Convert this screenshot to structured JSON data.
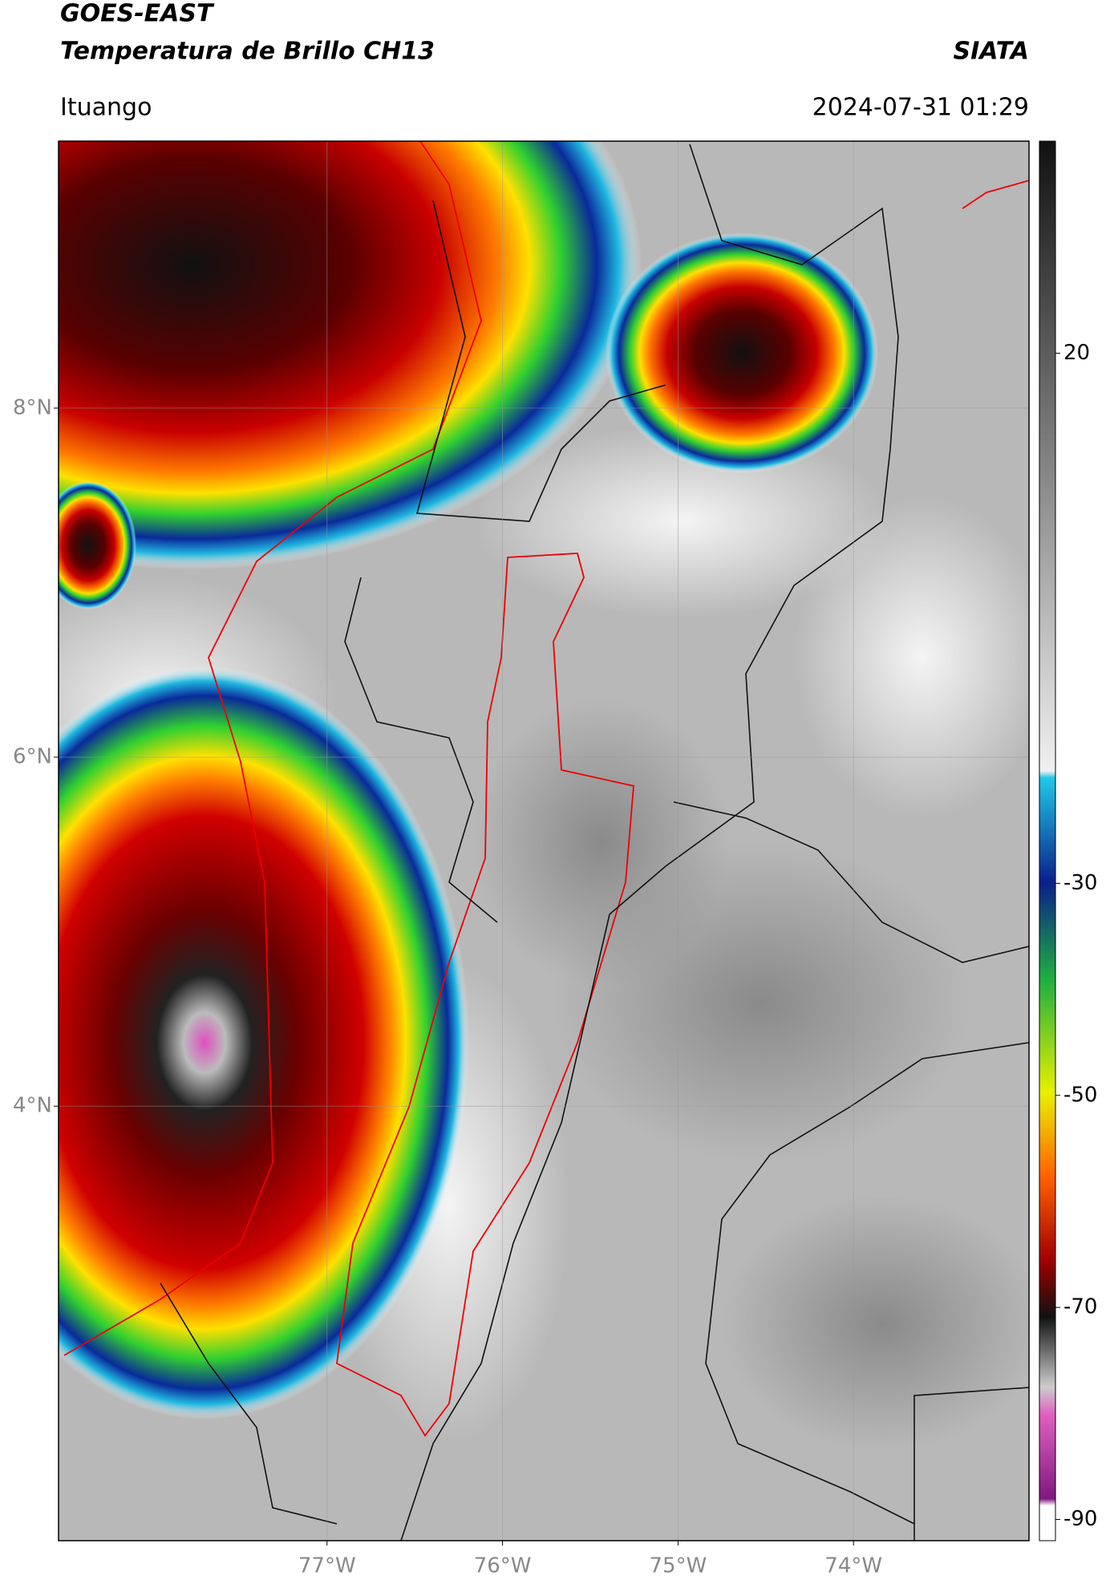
{
  "header": {
    "title": "GOES-EAST",
    "subtitle": "Temperatura de Brillo CH13",
    "source": "SIATA",
    "location": "Ituango",
    "datetime": "2024-07-31 01:29"
  },
  "map": {
    "xlim": [
      -78.53,
      -73.0
    ],
    "ylim": [
      1.51,
      9.53
    ],
    "xticks": [
      {
        "value": -77,
        "label": "77°W"
      },
      {
        "value": -76,
        "label": "76°W"
      },
      {
        "value": -75,
        "label": "75°W"
      },
      {
        "value": -74,
        "label": "74°W"
      }
    ],
    "yticks": [
      {
        "value": 4,
        "label": "4°N"
      },
      {
        "value": 6,
        "label": "6°N"
      },
      {
        "value": 8,
        "label": "8°N"
      }
    ],
    "grid": true
  },
  "colorbar": {
    "lim": [
      -92,
      40
    ],
    "ticks": [
      20,
      -30,
      -50,
      -70,
      -90
    ]
  }
}
